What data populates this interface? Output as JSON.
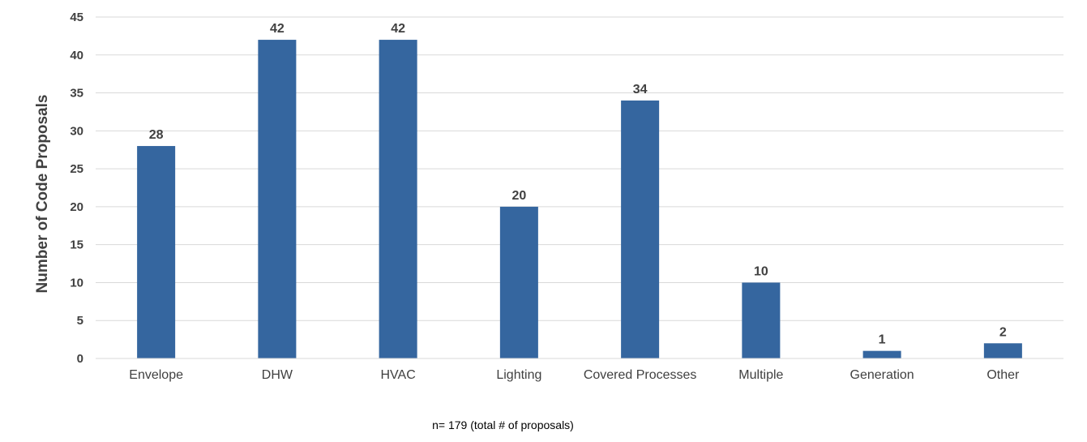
{
  "chart_data": {
    "type": "bar",
    "categories": [
      "Envelope",
      "DHW",
      "HVAC",
      "Lighting",
      "Covered Processes",
      "Multiple",
      "Generation",
      "Other"
    ],
    "values": [
      28,
      42,
      42,
      20,
      34,
      10,
      1,
      2
    ],
    "title": "",
    "xlabel": "",
    "ylabel": "Number of Code Proposals",
    "ylim": [
      0,
      45
    ],
    "yticks": [
      0,
      5,
      10,
      15,
      20,
      25,
      30,
      35,
      40,
      45
    ],
    "grid": true,
    "legend": "none",
    "data_labels": true,
    "bar_color": "#35669F",
    "grid_color": "#D9D9D9",
    "note": "n= 179 (total # of proposals)"
  }
}
